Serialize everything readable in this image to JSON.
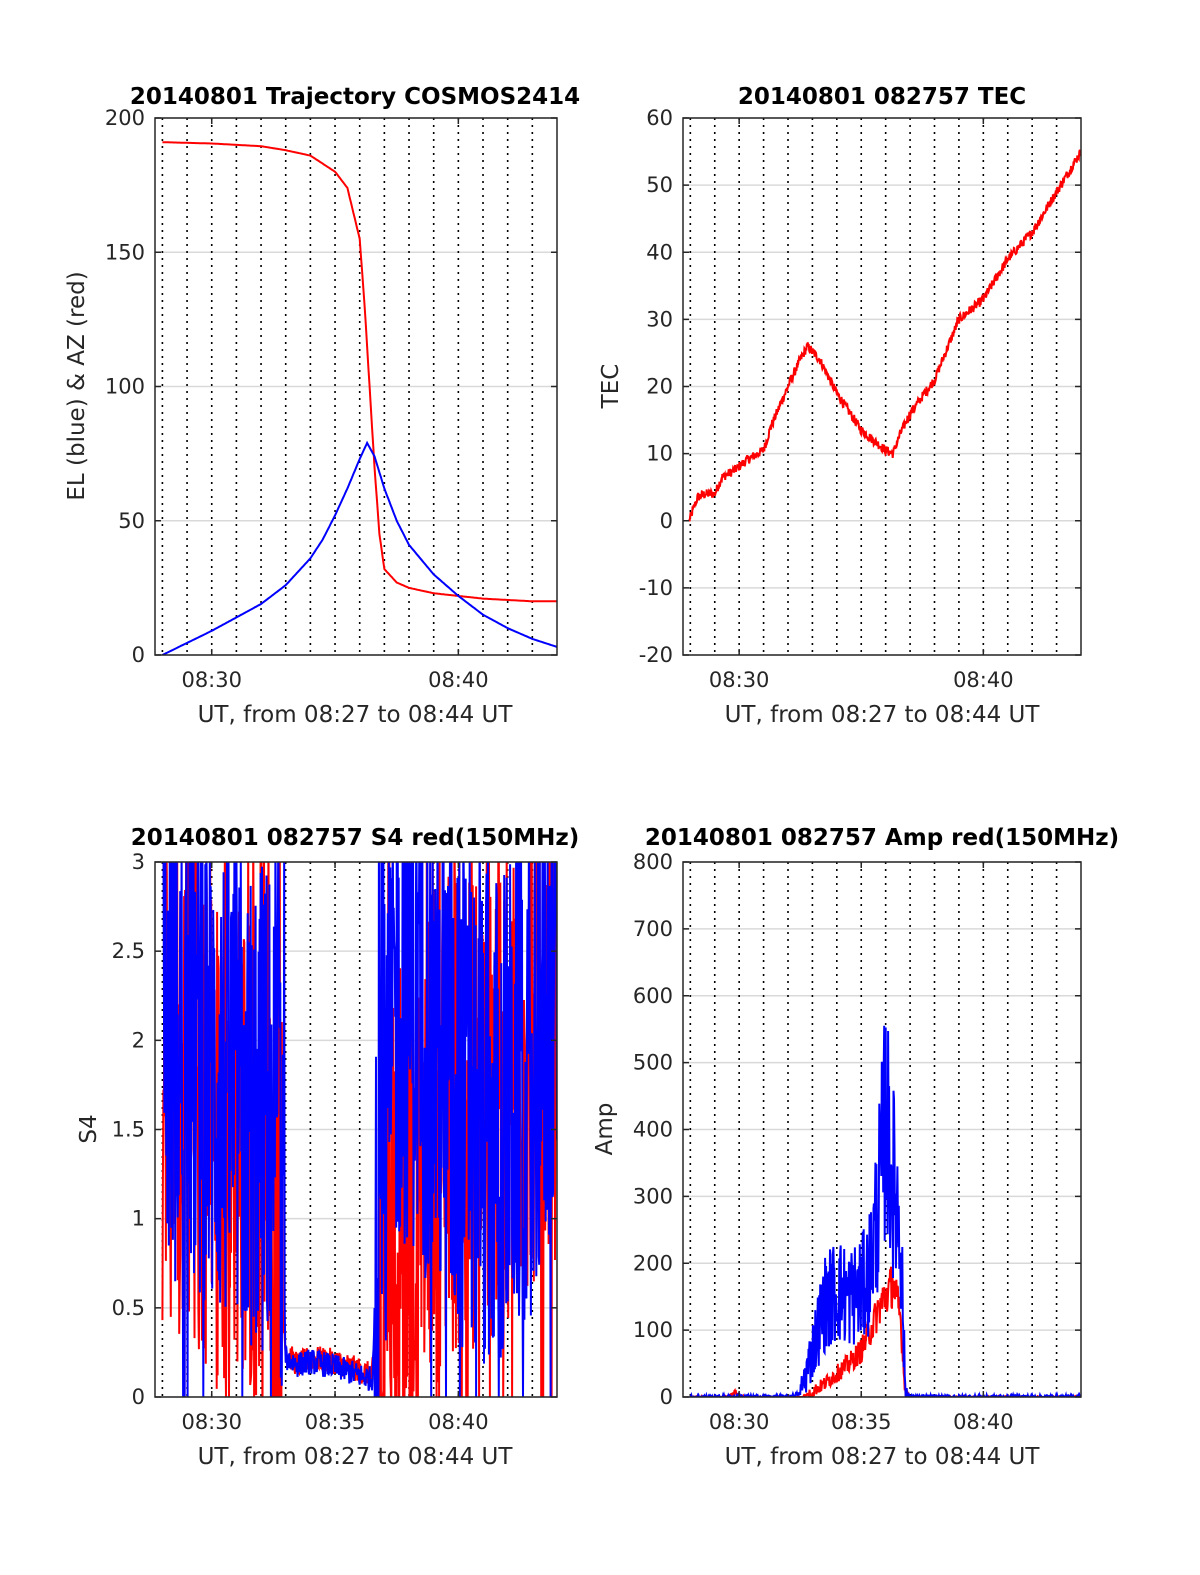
{
  "colors": {
    "red": "#ff0000",
    "blue": "#0000ff",
    "grid": "#d9d9d9",
    "axis": "#262626",
    "minor_vline": "#000000"
  },
  "chart_data": [
    {
      "id": "trajectory",
      "type": "line",
      "title": "20140801 Trajectory COSMOS2414",
      "xlabel": "UT, from 08:27 to 08:44 UT",
      "ylabel": "EL (blue) & AZ (red)",
      "xlim": [
        27.7,
        44.0
      ],
      "ylim": [
        0,
        200
      ],
      "xticks": [
        30,
        40
      ],
      "xticklabels": [
        "08:30",
        "08:40"
      ],
      "yticks": [
        0,
        50,
        100,
        150,
        200
      ],
      "yticklabels": [
        "0",
        "50",
        "100",
        "150",
        "200"
      ],
      "grid": "on",
      "vlines_minutes": [
        28,
        29,
        30,
        31,
        32,
        33,
        34,
        35,
        36,
        37,
        38,
        39,
        40,
        41,
        42,
        43
      ],
      "series": [
        {
          "color": "red",
          "noise": 0,
          "x": [
            28,
            30,
            32,
            33,
            34,
            35,
            35.5,
            36,
            36.2,
            36.4,
            36.6,
            36.8,
            37,
            37.5,
            38,
            39,
            40,
            41,
            42,
            43,
            44
          ],
          "y": [
            191,
            190.5,
            189.5,
            188,
            186,
            180,
            174,
            155,
            130,
            100,
            70,
            45,
            32,
            27,
            25,
            23,
            22,
            21,
            20.5,
            20,
            20
          ]
        },
        {
          "color": "blue",
          "noise": 0,
          "x": [
            28,
            30,
            32,
            33,
            34,
            34.5,
            35,
            35.5,
            36,
            36.3,
            36.6,
            37,
            37.5,
            38,
            39,
            40,
            41,
            42,
            43,
            44
          ],
          "y": [
            0,
            9,
            19,
            26,
            36,
            43,
            52,
            62,
            73,
            79,
            74,
            62,
            50,
            41,
            30,
            22,
            15,
            10,
            6,
            3
          ]
        }
      ]
    },
    {
      "id": "tec",
      "type": "line",
      "title": "20140801 082757 TEC",
      "xlabel": "UT, from 08:27 to 08:44 UT",
      "ylabel": "TEC",
      "xlim": [
        27.7,
        44.0
      ],
      "ylim": [
        -20,
        60
      ],
      "xticks": [
        30,
        40
      ],
      "xticklabels": [
        "08:30",
        "08:40"
      ],
      "yticks": [
        -20,
        -10,
        0,
        10,
        20,
        30,
        40,
        50,
        60
      ],
      "yticklabels": [
        "-20",
        "-10",
        "0",
        "10",
        "20",
        "30",
        "40",
        "50",
        "60"
      ],
      "grid": "on",
      "vlines_minutes": [
        28,
        29,
        30,
        31,
        32,
        33,
        34,
        35,
        36,
        37,
        38,
        39,
        40,
        41,
        42,
        43
      ],
      "series": [
        {
          "color": "red",
          "noise": 0.7,
          "x": [
            27.95,
            28.3,
            28.6,
            29,
            29.3,
            29.8,
            30.3,
            31,
            31.3,
            32,
            32.5,
            32.8,
            33.3,
            34,
            35,
            36,
            36.3,
            36.6,
            37,
            38,
            39,
            40,
            41,
            42,
            43,
            44
          ],
          "y": [
            0,
            3.5,
            4,
            4,
            6.5,
            7.5,
            9,
            10.5,
            14,
            20,
            24,
            26,
            24,
            19,
            13.5,
            10.5,
            10,
            13,
            16,
            21,
            30,
            33,
            39,
            43,
            49,
            55
          ]
        }
      ]
    },
    {
      "id": "s4",
      "type": "line",
      "title": "20140801 082757 S4 red(150MHz)",
      "xlabel": "UT, from 08:27 to 08:44 UT",
      "ylabel": "S4",
      "xlim": [
        27.7,
        44.0
      ],
      "ylim": [
        0,
        3
      ],
      "xticks": [
        30,
        35,
        40
      ],
      "xticklabels": [
        "08:30",
        "08:35",
        "08:40"
      ],
      "yticks": [
        0,
        0.5,
        1,
        1.5,
        2,
        2.5,
        3
      ],
      "yticklabels": [
        "0",
        "0.5",
        "1",
        "1.5",
        "2",
        "2.5",
        "3"
      ],
      "grid": "on",
      "vlines_minutes": [
        28,
        29,
        30,
        31,
        32,
        33,
        34,
        35,
        36,
        37,
        38,
        39,
        40,
        41,
        42,
        43
      ],
      "series": [
        {
          "color": "red",
          "noise": 0.9,
          "x": [
            28,
            29,
            30,
            31,
            32,
            32.8,
            33,
            33.5,
            34,
            35,
            36,
            36.5,
            36.8,
            37.2,
            38,
            39,
            40,
            41,
            42,
            43,
            44
          ],
          "y": [
            1.8,
            1.7,
            1.5,
            1.4,
            1.3,
            1.0,
            0.25,
            0.18,
            0.22,
            0.2,
            0.15,
            0.12,
            0.55,
            0.8,
            1.2,
            1.5,
            1.6,
            1.7,
            1.8,
            2.0,
            2.2
          ]
        },
        {
          "color": "blue",
          "noise": 0.9,
          "x": [
            28,
            29,
            30,
            31,
            32,
            32.8,
            33,
            33.5,
            34,
            35,
            36,
            36.5,
            36.8,
            37,
            37.5,
            38,
            39,
            40,
            41,
            42,
            43,
            44
          ],
          "y": [
            2.1,
            2.0,
            1.8,
            1.7,
            1.6,
            1.5,
            0.22,
            0.18,
            0.2,
            0.17,
            0.12,
            0.1,
            1.1,
            1.4,
            2.2,
            2.3,
            2.0,
            1.6,
            1.5,
            1.6,
            1.9,
            2.3
          ]
        }
      ]
    },
    {
      "id": "amp",
      "type": "line",
      "title": "20140801 082757 Amp red(150MHz)",
      "xlabel": "UT, from 08:27 to 08:44 UT",
      "ylabel": "Amp",
      "xlim": [
        27.7,
        44.0
      ],
      "ylim": [
        0,
        800
      ],
      "xticks": [
        30,
        35,
        40
      ],
      "xticklabels": [
        "08:30",
        "08:35",
        "08:40"
      ],
      "yticks": [
        0,
        100,
        200,
        300,
        400,
        500,
        600,
        700,
        800
      ],
      "yticklabels": [
        "0",
        "100",
        "200",
        "300",
        "400",
        "500",
        "600",
        "700",
        "800"
      ],
      "grid": "on",
      "vlines_minutes": [
        28,
        29,
        30,
        31,
        32,
        33,
        34,
        35,
        36,
        37,
        38,
        39,
        40,
        41,
        42,
        43
      ],
      "series": [
        {
          "color": "red",
          "noise": 25,
          "x": [
            28,
            29.5,
            29.8,
            30.2,
            31,
            32,
            32.6,
            33,
            33.5,
            34,
            34.5,
            35,
            35.5,
            35.8,
            36,
            36.3,
            36.6,
            36.8,
            37,
            38,
            40,
            44
          ],
          "y": [
            0,
            0,
            6,
            0,
            0,
            0,
            0,
            8,
            20,
            35,
            50,
            70,
            110,
            140,
            150,
            170,
            120,
            10,
            0,
            0,
            0,
            0
          ]
        },
        {
          "color": "blue",
          "noise": 60,
          "x": [
            28,
            32,
            32.5,
            33,
            33.5,
            34,
            34.5,
            35,
            35.3,
            35.6,
            35.8,
            36,
            36.2,
            36.4,
            36.6,
            36.8,
            37,
            38,
            40,
            44
          ],
          "y": [
            0,
            0,
            5,
            70,
            140,
            160,
            150,
            160,
            180,
            260,
            330,
            420,
            350,
            300,
            260,
            10,
            0,
            0,
            0,
            0
          ]
        }
      ]
    }
  ]
}
